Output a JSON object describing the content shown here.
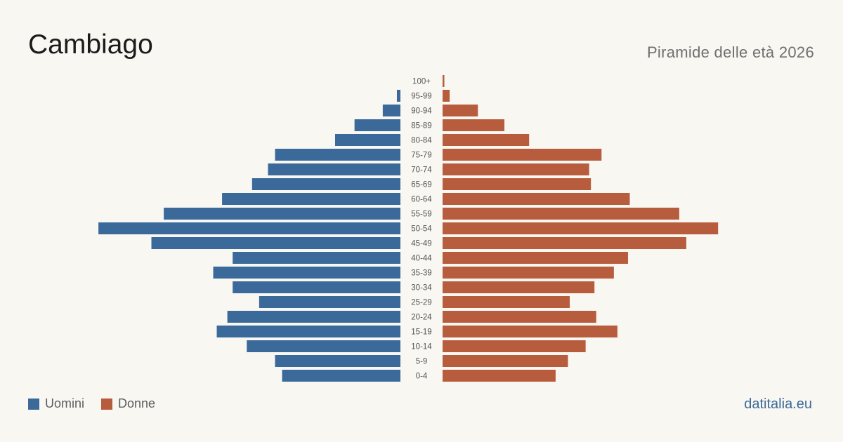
{
  "header": {
    "title": "Cambiago",
    "subtitle": "Piramide delle età 2026"
  },
  "legend": {
    "men_label": "Uomini",
    "women_label": "Donne"
  },
  "footer": {
    "source": "datitalia.eu"
  },
  "colors": {
    "men": "#3b6a9a",
    "women": "#b85c3e",
    "background": "#f9f7f2"
  },
  "chart_data": {
    "type": "bar",
    "orientation": "horizontal-pyramid",
    "title": "Cambiago",
    "subtitle": "Piramide delle età 2026",
    "categories": [
      "100+",
      "95-99",
      "90-94",
      "85-89",
      "80-84",
      "75-79",
      "70-74",
      "65-69",
      "60-64",
      "55-59",
      "50-54",
      "45-49",
      "40-44",
      "35-39",
      "30-34",
      "25-29",
      "20-24",
      "15-19",
      "10-14",
      "5-9",
      "0-4"
    ],
    "series": [
      {
        "name": "Uomini",
        "color": "#3b6a9a",
        "values": [
          0,
          2,
          10,
          26,
          37,
          71,
          75,
          84,
          101,
          134,
          171,
          141,
          95,
          106,
          95,
          80,
          98,
          104,
          87,
          71,
          67
        ]
      },
      {
        "name": "Donne",
        "color": "#b85c3e",
        "values": [
          1,
          4,
          20,
          35,
          49,
          90,
          83,
          84,
          106,
          134,
          156,
          138,
          105,
          97,
          86,
          72,
          87,
          99,
          81,
          71,
          64
        ]
      }
    ],
    "legend_position": "bottom-left",
    "grid": false
  }
}
